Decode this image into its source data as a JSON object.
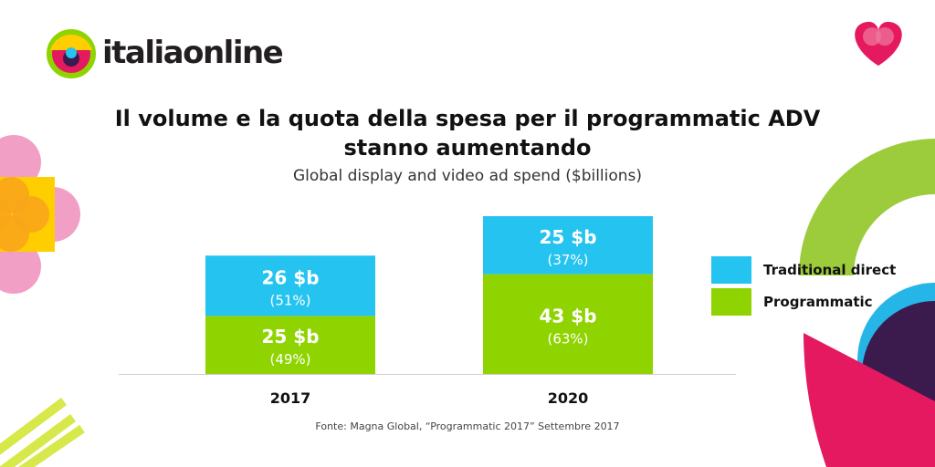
{
  "brand": {
    "name": "italiaonline"
  },
  "header": {
    "title_line1": "Il volume e la quota della spesa per il programmatic ADV",
    "title_line2": "stanno aumentando",
    "subtitle": "Global display and video ad spend ($billions)"
  },
  "colors": {
    "traditional": "#25c3ef",
    "programmatic": "#8fd400",
    "pink": "#e5195f",
    "green_arc": "#9ccc3c",
    "purple": "#3b1a4d"
  },
  "chart_data": {
    "type": "bar",
    "stacked": true,
    "title": "Il volume e la quota della spesa per il programmatic ADV stanno aumentando",
    "subtitle": "Global display and video ad spend ($billions)",
    "categories": [
      "2017",
      "2020"
    ],
    "series": [
      {
        "name": "Programmatic",
        "values": [
          25,
          43
        ],
        "labels": [
          "25 $b",
          "43 $b"
        ],
        "percent_labels": [
          "(49%)",
          "(63%)"
        ],
        "color": "#8fd400"
      },
      {
        "name": "Traditional direct",
        "values": [
          26,
          25
        ],
        "labels": [
          "26 $b",
          "25 $b"
        ],
        "percent_labels": [
          "(51%)",
          "(37%)"
        ],
        "color": "#25c3ef"
      }
    ],
    "ylim": [
      0,
      68
    ],
    "grid": false,
    "legend_position": "right"
  },
  "legend": [
    {
      "label": "Traditional direct",
      "color": "#25c3ef"
    },
    {
      "label": "Programmatic",
      "color": "#8fd400"
    }
  ],
  "source": "Fonte: Magna Global, “Programmatic 2017” Settembre 2017"
}
